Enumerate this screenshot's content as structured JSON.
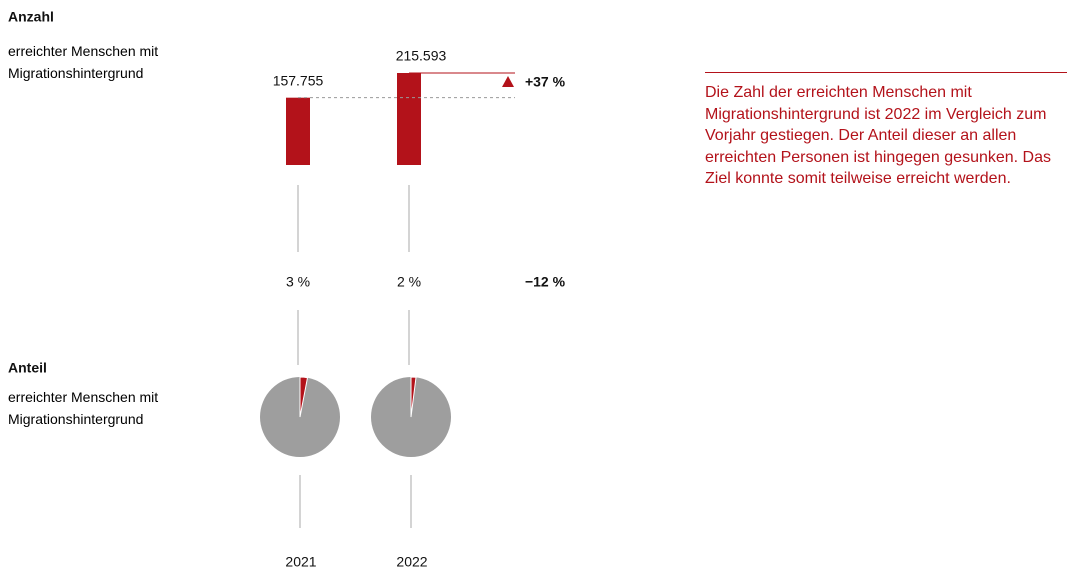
{
  "chart_data": [
    {
      "type": "bar",
      "title": "Anzahl",
      "subtitle": "erreichter Menschen mit Migrationshintergrund",
      "categories": [
        "2021",
        "2022"
      ],
      "values": [
        157755,
        215593
      ],
      "value_labels": [
        "157.755",
        "215.593"
      ],
      "color": "#b3121a",
      "change_label": "+37 %"
    },
    {
      "type": "pie",
      "title": "Anteil",
      "subtitle": "erreichter Menschen mit Migrationshintergrund",
      "values": [
        3,
        2
      ],
      "value_labels": [
        "3 %",
        "2 %"
      ],
      "color": "#b3121a",
      "rest_color": "#9e9e9e",
      "change_label": "−12 %"
    }
  ],
  "note": "Die Zahl der erreichten Menschen mit Migrationshintergrund ist 2022 im Vergleich zum Vorjahr gestiegen. Der Anteil dieser an allen erreichten Personen ist hingegen gesunken. Das Ziel konnte somit teilweise erreicht werden."
}
